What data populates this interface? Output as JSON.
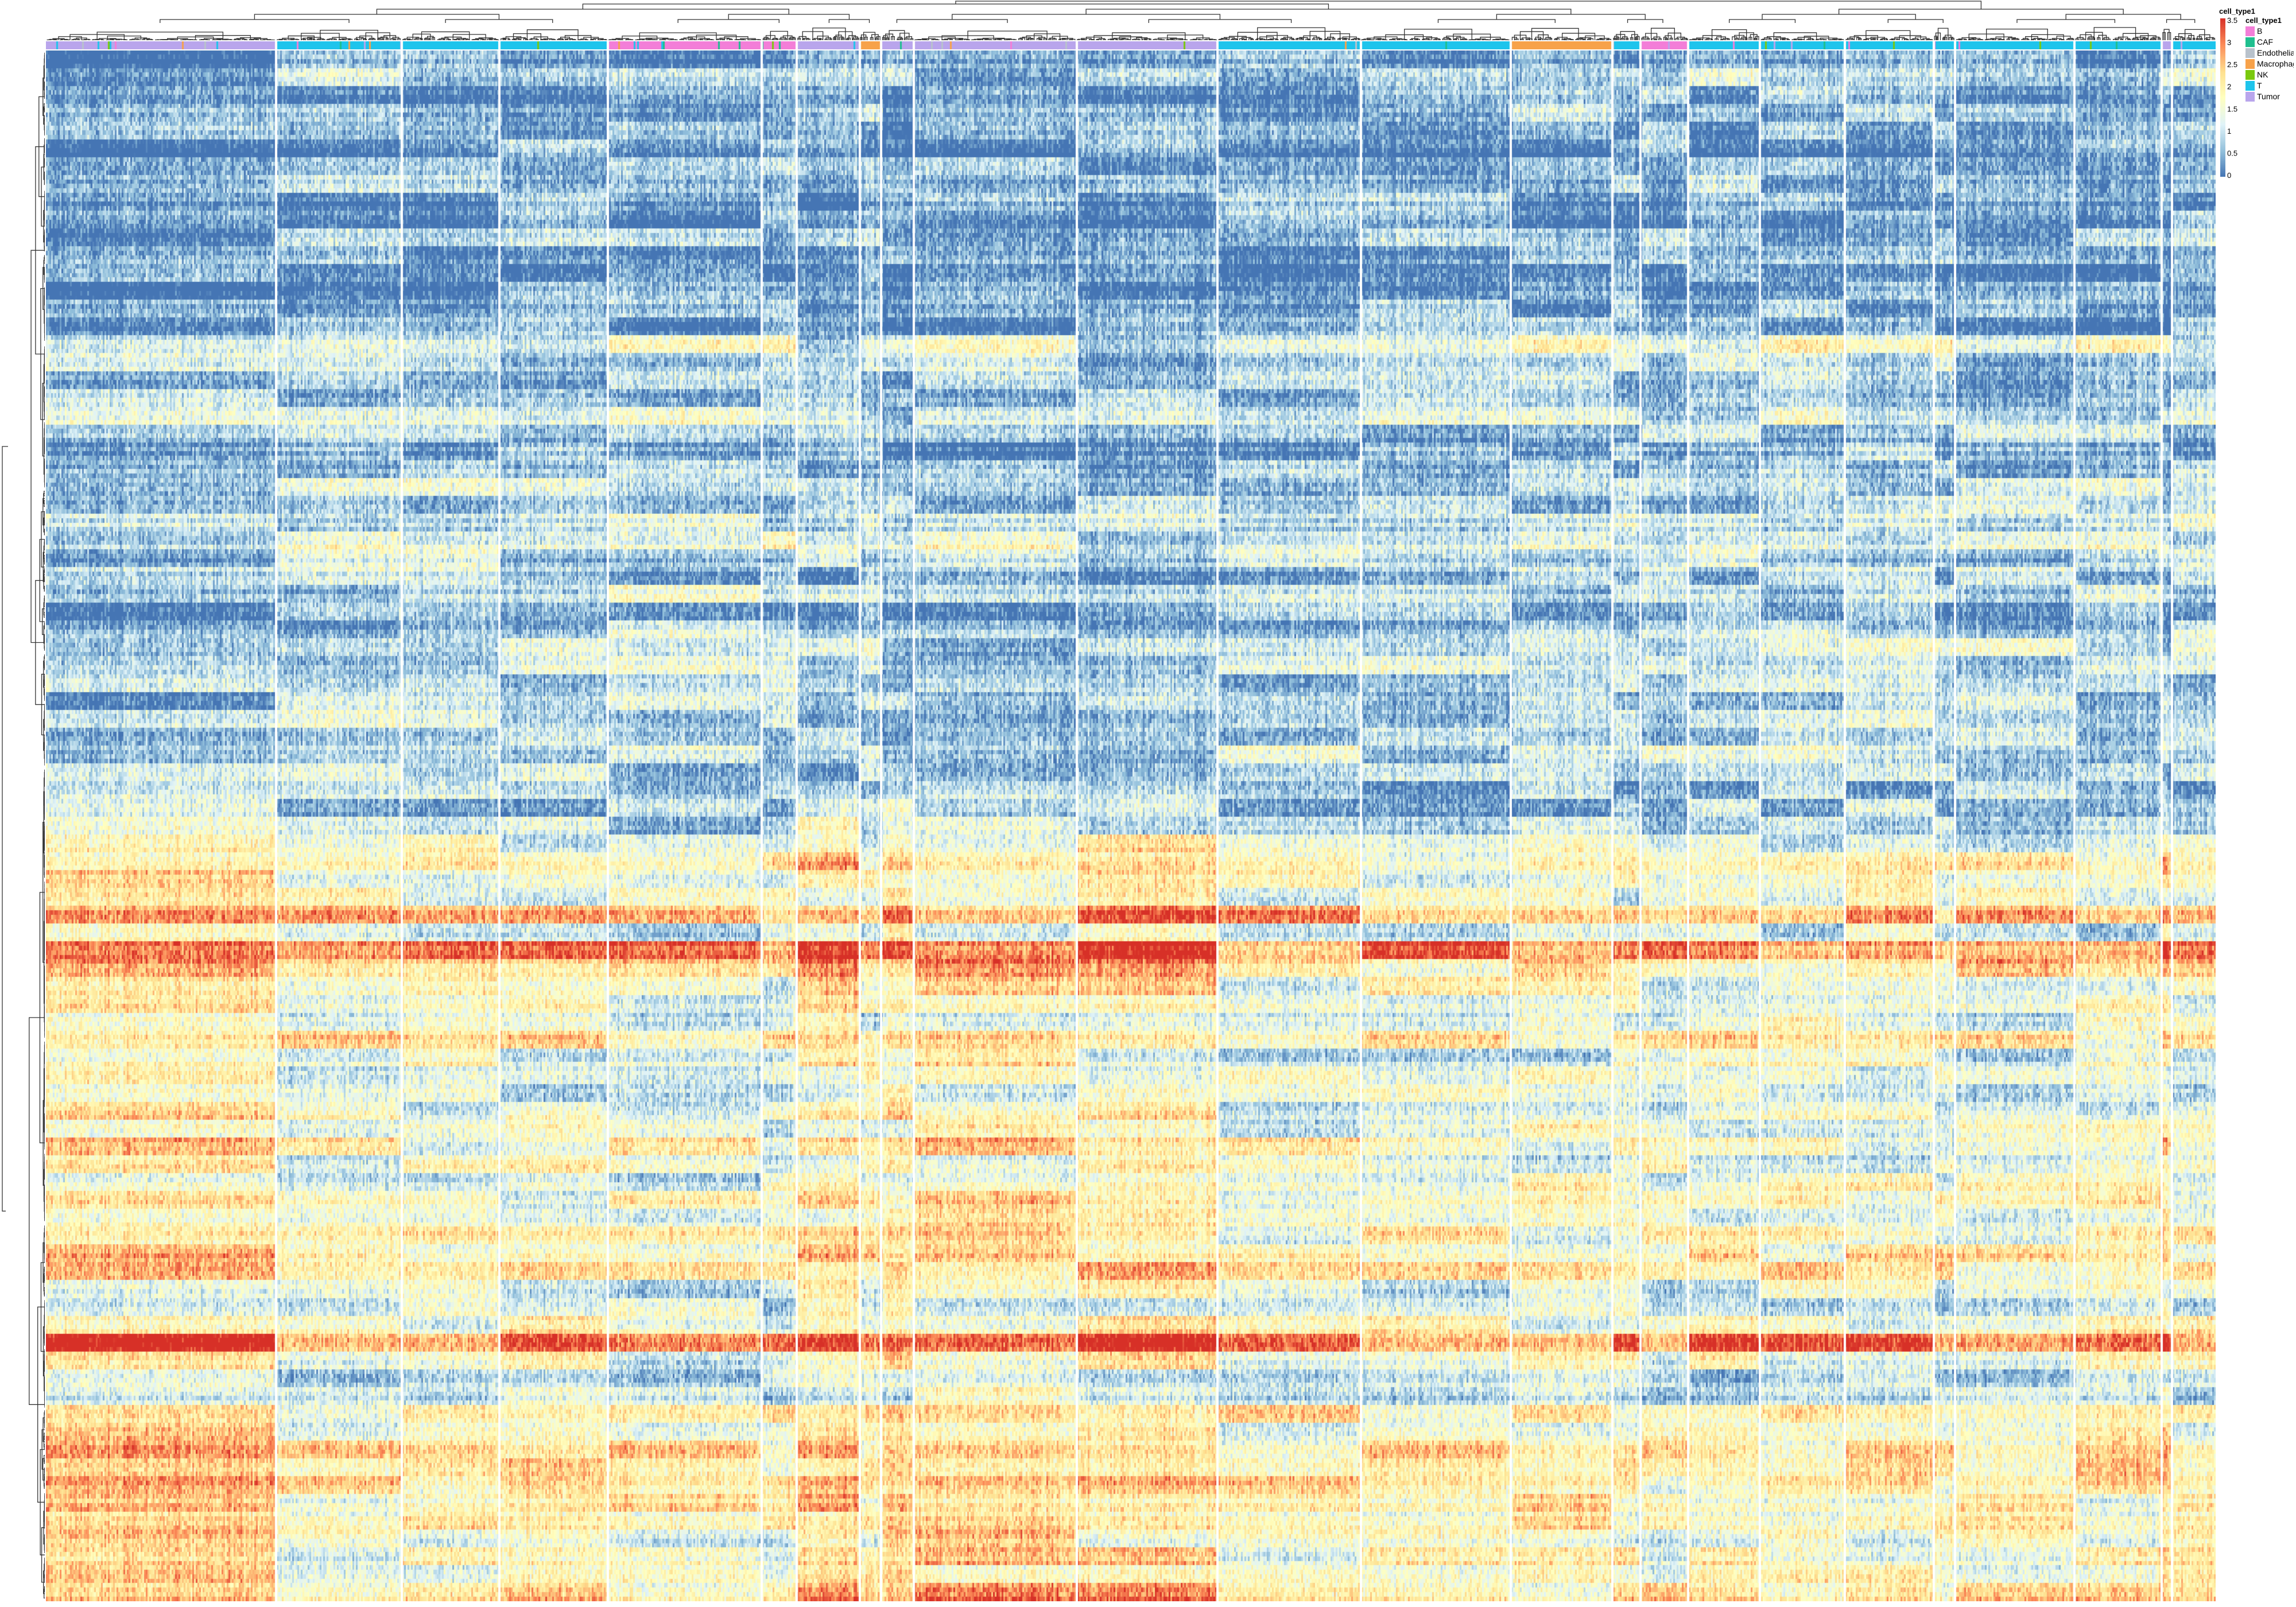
{
  "chart_data": {
    "type": "heatmap",
    "title": "",
    "xlabel": "",
    "ylabel": "",
    "color_scale": {
      "title": "",
      "min": 0,
      "max": 3.5,
      "ticks": [
        "3.5",
        "3",
        "2.5",
        "2",
        "1.5",
        "1",
        "0.5",
        "0"
      ],
      "colors": [
        "#4575b4",
        "#91bfdb",
        "#e0f3f8",
        "#ffffbf",
        "#fee090",
        "#fc8d59",
        "#d73027"
      ]
    },
    "column_annotation": {
      "title": "cell_type1",
      "categories": [
        {
          "label": "B",
          "color": "#f37ed8"
        },
        {
          "label": "CAF",
          "color": "#1fbf8f"
        },
        {
          "label": "Endothelial",
          "color": "#b8c2cc"
        },
        {
          "label": "Macrophage",
          "color": "#f7a24a"
        },
        {
          "label": "NK",
          "color": "#7ac90e"
        },
        {
          "label": "T",
          "color": "#1ec4ec"
        },
        {
          "label": "Tumor",
          "color": "#b9a5ec"
        }
      ],
      "column_blocks": [
        {
          "start": 0.0,
          "end": 0.106,
          "type": "Tumor"
        },
        {
          "start": 0.106,
          "end": 0.164,
          "type": "T"
        },
        {
          "start": 0.164,
          "end": 0.209,
          "type": "T"
        },
        {
          "start": 0.209,
          "end": 0.259,
          "type": "T"
        },
        {
          "start": 0.259,
          "end": 0.33,
          "type": "B"
        },
        {
          "start": 0.33,
          "end": 0.346,
          "type": "B"
        },
        {
          "start": 0.346,
          "end": 0.375,
          "type": "Tumor"
        },
        {
          "start": 0.375,
          "end": 0.385,
          "type": "Macrophage"
        },
        {
          "start": 0.385,
          "end": 0.4,
          "type": "Tumor"
        },
        {
          "start": 0.4,
          "end": 0.475,
          "type": "Tumor"
        },
        {
          "start": 0.475,
          "end": 0.54,
          "type": "Tumor"
        },
        {
          "start": 0.54,
          "end": 0.606,
          "type": "T"
        },
        {
          "start": 0.606,
          "end": 0.675,
          "type": "T"
        },
        {
          "start": 0.675,
          "end": 0.722,
          "type": "Macrophage"
        },
        {
          "start": 0.722,
          "end": 0.735,
          "type": "T"
        },
        {
          "start": 0.735,
          "end": 0.757,
          "type": "B"
        },
        {
          "start": 0.757,
          "end": 0.79,
          "type": "T"
        },
        {
          "start": 0.79,
          "end": 0.829,
          "type": "T"
        },
        {
          "start": 0.829,
          "end": 0.87,
          "type": "T"
        },
        {
          "start": 0.87,
          "end": 0.88,
          "type": "T"
        },
        {
          "start": 0.88,
          "end": 0.935,
          "type": "T"
        },
        {
          "start": 0.935,
          "end": 0.975,
          "type": "T"
        },
        {
          "start": 0.975,
          "end": 0.98,
          "type": "Tumor"
        },
        {
          "start": 0.98,
          "end": 1.0,
          "type": "T"
        }
      ],
      "legend_position": "top-right"
    },
    "dendrograms": {
      "rows": true,
      "columns": true
    },
    "row_band_mean_values": [
      0.4,
      0.9,
      0.5,
      0.6,
      0.4,
      0.3,
      0.5,
      0.7,
      0.4,
      0.3,
      0.6,
      0.5,
      0.4,
      0.3,
      0.6,
      0.4,
      1.4,
      1.0,
      0.8,
      0.9,
      1.1,
      0.7,
      0.6,
      0.8,
      1.0,
      0.7,
      1.1,
      1.4,
      0.9,
      0.8,
      1.0,
      0.6,
      0.8,
      1.2,
      1.0,
      0.9,
      0.7,
      1.1,
      0.8,
      1.0,
      0.9,
      0.7,
      0.8,
      1.0,
      1.3,
      1.8,
      1.6,
      1.4,
      2.4,
      1.2,
      2.8,
      2.2,
      1.6,
      1.5,
      1.3,
      1.9,
      1.4,
      1.5,
      1.2,
      1.6,
      1.3,
      1.7,
      1.4,
      1.5,
      1.6,
      1.5,
      1.7,
      1.9,
      1.8,
      1.4,
      1.2,
      1.6,
      2.9,
      1.4,
      0.9,
      1.1,
      2.0,
      1.7,
      2.0,
      2.2,
      2.0,
      1.9,
      1.8,
      1.6,
      1.7,
      1.6,
      2.1
    ]
  }
}
